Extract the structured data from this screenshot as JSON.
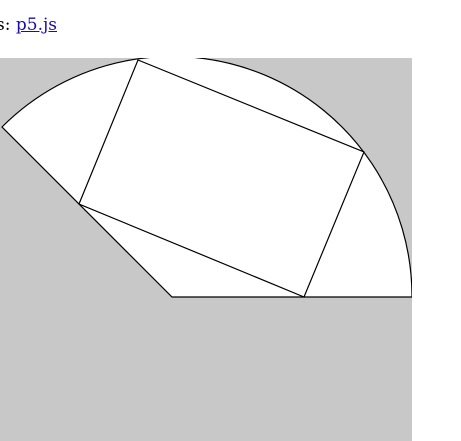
{
  "header": {
    "prefix_text": "es: ",
    "link_text": "p5.js"
  },
  "canvas": {
    "background_color": "#c8c8c8",
    "shape_fill_color": "#ffffff",
    "stroke_color": "#000000"
  }
}
